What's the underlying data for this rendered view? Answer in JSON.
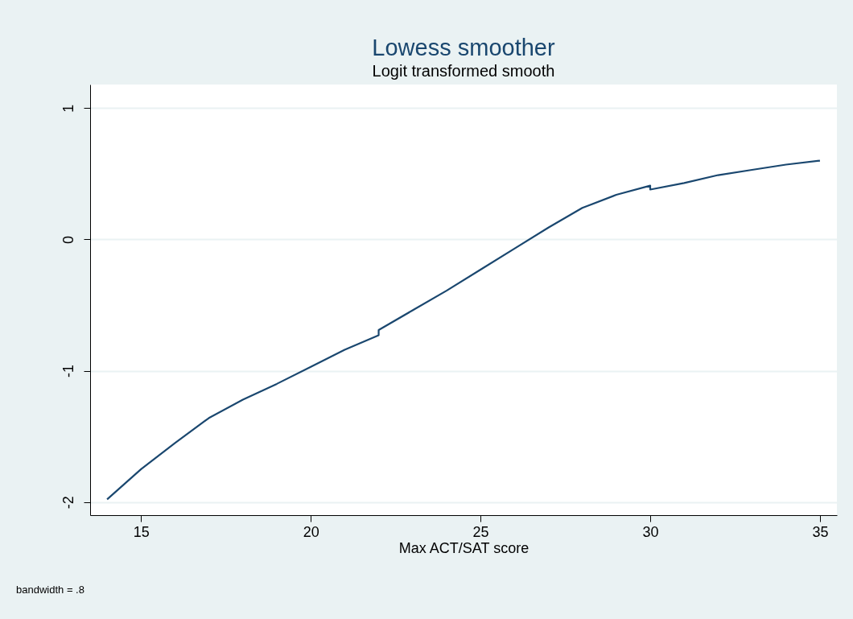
{
  "chart_data": {
    "type": "line",
    "title": "Lowess smoother",
    "subtitle": "Logit transformed smooth",
    "xlabel": "Max ACT/SAT score",
    "annotations": [
      "bandwidth = .8"
    ],
    "x": [
      14,
      15,
      16,
      17,
      18,
      19,
      20,
      21,
      22,
      22,
      23,
      24,
      25,
      26,
      27,
      28,
      29,
      30,
      30,
      31,
      32,
      33,
      34,
      35
    ],
    "series": [
      {
        "color": "#1a476f",
        "values": [
          -1.98,
          -1.75,
          -1.55,
          -1.36,
          -1.22,
          -1.1,
          -0.97,
          -0.84,
          -0.73,
          -0.69,
          -0.54,
          -0.39,
          -0.23,
          -0.07,
          0.09,
          0.24,
          0.34,
          0.41,
          0.38,
          0.43,
          0.49,
          0.53,
          0.57,
          0.6
        ]
      }
    ],
    "xlim": [
      13.5,
      35.5
    ],
    "xticks": [
      15,
      20,
      25,
      30,
      35
    ],
    "ylim": [
      -2.1,
      1.18
    ],
    "yticks": [
      -2,
      -1,
      0,
      1
    ],
    "grid": "y",
    "marker": "none",
    "line_style": "solid"
  }
}
